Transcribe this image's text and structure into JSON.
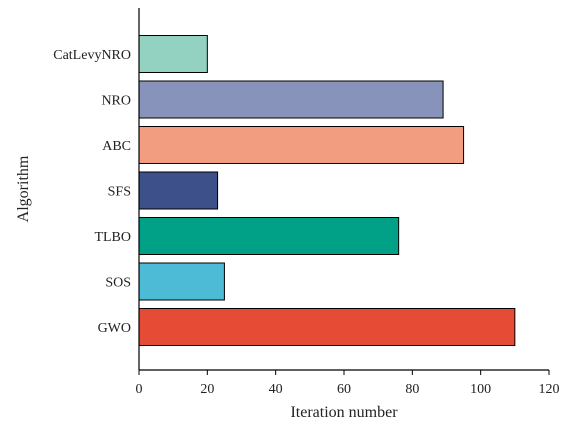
{
  "chart_data": {
    "type": "bar",
    "orientation": "horizontal",
    "categories": [
      "CatLevyNRO",
      "NRO",
      "ABC",
      "SFS",
      "TLBO",
      "SOS",
      "GWO"
    ],
    "values": [
      20,
      89,
      95,
      23,
      76,
      25,
      110
    ],
    "colors": [
      "#93d1c1",
      "#8793ba",
      "#f39d80",
      "#3d5089",
      "#00a187",
      "#4dbad6",
      "#e64b35"
    ],
    "xlabel": "Iteration number",
    "ylabel": "Algorithm",
    "xlim": [
      0,
      120
    ],
    "xticks": [
      "0",
      "20",
      "40",
      "60",
      "80",
      "100",
      "120"
    ],
    "grid": false
  }
}
